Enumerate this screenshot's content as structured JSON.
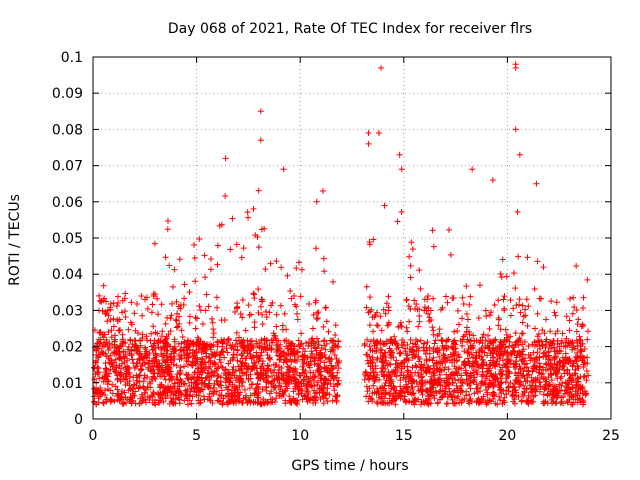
{
  "chart_data": {
    "type": "scatter",
    "title": "Day 068 of 2021, Rate Of TEC Index for receiver flrs",
    "xlabel": "GPS time / hours",
    "ylabel": "ROTI / TECUs",
    "xlim": [
      0,
      25
    ],
    "ylim": [
      0,
      0.1
    ],
    "xticks": [
      0,
      5,
      10,
      15,
      20,
      25
    ],
    "xtick_labels": [
      "0",
      "5",
      "10",
      "15",
      "20",
      "25"
    ],
    "yticks": [
      0,
      0.01,
      0.02,
      0.03,
      0.04,
      0.05,
      0.06,
      0.07,
      0.08,
      0.09,
      0.1
    ],
    "ytick_labels": [
      "0",
      "0.01",
      "0.02",
      "0.03",
      "0.04",
      "0.05",
      "0.06",
      "0.07",
      "0.08",
      "0.09",
      "0.1"
    ],
    "grid": true,
    "marker": "+",
    "color": "#ff0000",
    "data_gap_hours": [
      11.9,
      13.1
    ],
    "envelope": [
      [
        0.0,
        0.035
      ],
      [
        0.5,
        0.045
      ],
      [
        1.0,
        0.035
      ],
      [
        1.5,
        0.038
      ],
      [
        2.0,
        0.032
      ],
      [
        2.5,
        0.04
      ],
      [
        3.0,
        0.05
      ],
      [
        3.5,
        0.058
      ],
      [
        4.0,
        0.045
      ],
      [
        4.5,
        0.055
      ],
      [
        5.0,
        0.052
      ],
      [
        5.5,
        0.05
      ],
      [
        6.0,
        0.058
      ],
      [
        6.5,
        0.065
      ],
      [
        7.0,
        0.05
      ],
      [
        7.5,
        0.058
      ],
      [
        8.0,
        0.065
      ],
      [
        8.5,
        0.052
      ],
      [
        9.0,
        0.058
      ],
      [
        9.5,
        0.05
      ],
      [
        10.0,
        0.05
      ],
      [
        10.5,
        0.048
      ],
      [
        11.0,
        0.058
      ],
      [
        11.8,
        0.035
      ],
      [
        13.2,
        0.07
      ],
      [
        13.5,
        0.05
      ],
      [
        14.0,
        0.075
      ],
      [
        14.5,
        0.05
      ],
      [
        15.0,
        0.065
      ],
      [
        15.5,
        0.045
      ],
      [
        16.0,
        0.05
      ],
      [
        16.5,
        0.058
      ],
      [
        17.0,
        0.055
      ],
      [
        17.5,
        0.05
      ],
      [
        18.0,
        0.045
      ],
      [
        18.5,
        0.06
      ],
      [
        19.0,
        0.05
      ],
      [
        19.5,
        0.045
      ],
      [
        20.0,
        0.05
      ],
      [
        20.5,
        0.058
      ],
      [
        21.0,
        0.05
      ],
      [
        21.5,
        0.055
      ],
      [
        22.0,
        0.04
      ],
      [
        22.5,
        0.035
      ],
      [
        23.0,
        0.04
      ],
      [
        23.5,
        0.045
      ],
      [
        23.9,
        0.04
      ]
    ],
    "outliers": [
      [
        8.1,
        0.085
      ],
      [
        8.1,
        0.077
      ],
      [
        6.4,
        0.072
      ],
      [
        9.2,
        0.069
      ],
      [
        13.3,
        0.076
      ],
      [
        13.3,
        0.079
      ],
      [
        13.8,
        0.079
      ],
      [
        13.9,
        0.097
      ],
      [
        14.8,
        0.073
      ],
      [
        14.9,
        0.069
      ],
      [
        18.3,
        0.069
      ],
      [
        19.3,
        0.066
      ],
      [
        20.4,
        0.098
      ],
      [
        20.4,
        0.097
      ],
      [
        20.4,
        0.08
      ],
      [
        21.4,
        0.065
      ],
      [
        11.1,
        0.063
      ],
      [
        10.8,
        0.06
      ],
      [
        20.6,
        0.073
      ]
    ]
  }
}
